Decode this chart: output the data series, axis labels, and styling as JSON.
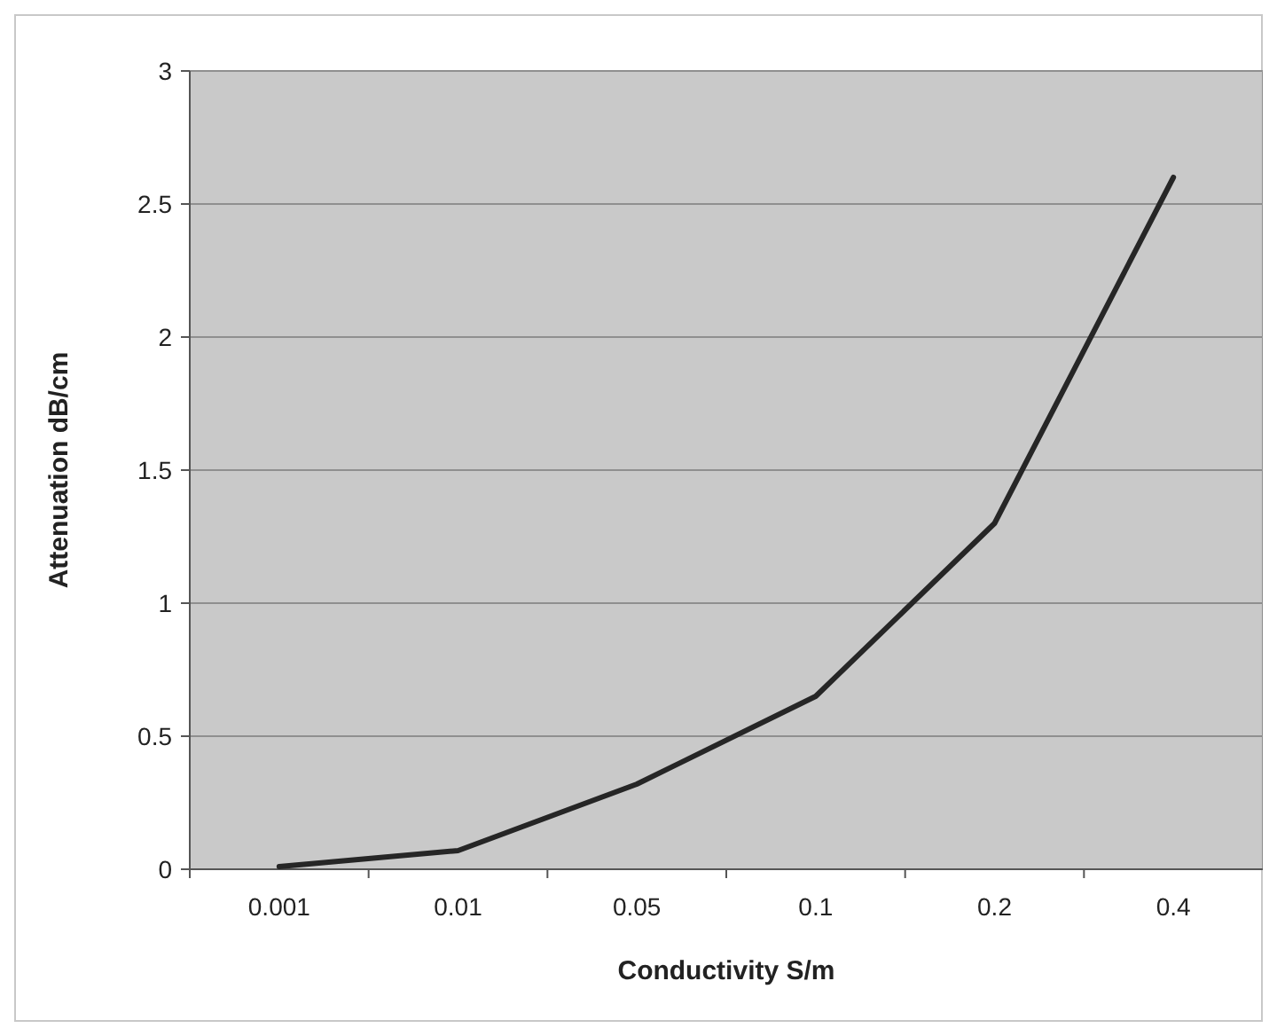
{
  "chart_data": {
    "type": "line",
    "xlabel": "Conductivity S/m",
    "ylabel": "Attenuation dB/cm",
    "categories": [
      "0.001",
      "0.01",
      "0.05",
      "0.1",
      "0.2",
      "0.4"
    ],
    "series": [
      {
        "color": "#262626",
        "values": [
          0.01,
          0.07,
          0.32,
          0.65,
          1.3,
          2.6
        ]
      }
    ],
    "ylim": [
      0,
      3
    ],
    "yticks": [
      0,
      0.5,
      1,
      1.5,
      2,
      2.5,
      3
    ],
    "grid": "y"
  }
}
